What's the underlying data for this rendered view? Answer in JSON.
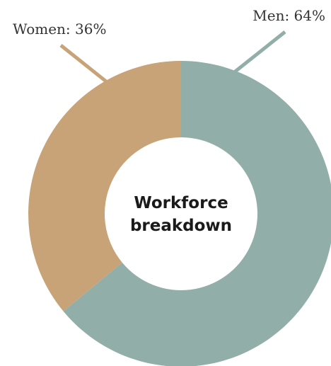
{
  "chart_data": {
    "type": "pie",
    "variant": "donut",
    "center_label": [
      "Workforce",
      "breakdown"
    ],
    "slices": [
      {
        "label": "Men",
        "value": 64,
        "color": "#92aea8",
        "display": "Men: 64%"
      },
      {
        "label": "Women",
        "value": 36,
        "color": "#c8a377",
        "display": "Women: 36%"
      }
    ],
    "start_angle_deg": 0,
    "direction": "clockwise"
  }
}
